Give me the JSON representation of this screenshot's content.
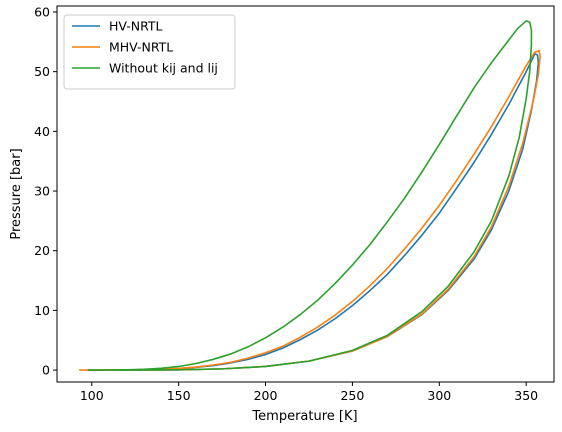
{
  "chart_data": {
    "type": "line",
    "title": "",
    "xlabel": "Temperature [K]",
    "ylabel": "Pressure [bar]",
    "xlim": [
      80,
      366
    ],
    "ylim": [
      -2,
      61
    ],
    "xticks": [
      100,
      150,
      200,
      250,
      300,
      350
    ],
    "yticks": [
      0,
      10,
      20,
      30,
      40,
      50,
      60
    ],
    "grid": false,
    "legend_position": "top-left",
    "series": [
      {
        "name": "HV-NRTL",
        "color": "#1f77b4",
        "points": [
          [
            98,
            0.0
          ],
          [
            120,
            0.0
          ],
          [
            150,
            0.05
          ],
          [
            175,
            0.2
          ],
          [
            200,
            0.6
          ],
          [
            225,
            1.5
          ],
          [
            250,
            3.2
          ],
          [
            270,
            5.6
          ],
          [
            290,
            9.3
          ],
          [
            305,
            13.3
          ],
          [
            320,
            18.6
          ],
          [
            330,
            23.5
          ],
          [
            340,
            30.0
          ],
          [
            348,
            37.0
          ],
          [
            353,
            43.5
          ],
          [
            356,
            48.5
          ],
          [
            357,
            51.5
          ],
          [
            356.5,
            52.8
          ],
          [
            355,
            53.0
          ],
          [
            350,
            50.0
          ],
          [
            340,
            44.5
          ],
          [
            330,
            39.5
          ],
          [
            320,
            34.8
          ],
          [
            310,
            30.5
          ],
          [
            300,
            26.3
          ],
          [
            290,
            22.6
          ],
          [
            280,
            19.2
          ],
          [
            270,
            16.0
          ],
          [
            260,
            13.3
          ],
          [
            250,
            10.8
          ],
          [
            240,
            8.6
          ],
          [
            230,
            6.7
          ],
          [
            220,
            5.1
          ],
          [
            210,
            3.7
          ],
          [
            200,
            2.6
          ],
          [
            190,
            1.8
          ],
          [
            180,
            1.2
          ],
          [
            170,
            0.75
          ],
          [
            160,
            0.45
          ],
          [
            150,
            0.25
          ],
          [
            140,
            0.13
          ],
          [
            130,
            0.06
          ],
          [
            120,
            0.02
          ],
          [
            110,
            0.0
          ],
          [
            100,
            0.0
          ]
        ]
      },
      {
        "name": "MHV-NRTL",
        "color": "#ff7f0e",
        "points": [
          [
            93,
            0.0
          ],
          [
            120,
            0.0
          ],
          [
            150,
            0.05
          ],
          [
            175,
            0.2
          ],
          [
            200,
            0.6
          ],
          [
            225,
            1.5
          ],
          [
            250,
            3.2
          ],
          [
            270,
            5.6
          ],
          [
            290,
            9.4
          ],
          [
            305,
            13.5
          ],
          [
            320,
            19.0
          ],
          [
            330,
            24.0
          ],
          [
            340,
            30.8
          ],
          [
            348,
            38.0
          ],
          [
            354,
            45.0
          ],
          [
            357,
            49.5
          ],
          [
            358,
            52.5
          ],
          [
            357.5,
            53.5
          ],
          [
            355,
            53.3
          ],
          [
            350,
            51.0
          ],
          [
            340,
            45.8
          ],
          [
            330,
            40.8
          ],
          [
            320,
            36.2
          ],
          [
            310,
            31.8
          ],
          [
            300,
            27.6
          ],
          [
            290,
            23.8
          ],
          [
            280,
            20.3
          ],
          [
            270,
            17.0
          ],
          [
            260,
            14.1
          ],
          [
            250,
            11.5
          ],
          [
            240,
            9.2
          ],
          [
            230,
            7.2
          ],
          [
            220,
            5.5
          ],
          [
            210,
            4.0
          ],
          [
            200,
            2.9
          ],
          [
            190,
            2.0
          ],
          [
            180,
            1.3
          ],
          [
            170,
            0.85
          ],
          [
            160,
            0.5
          ],
          [
            150,
            0.28
          ],
          [
            140,
            0.15
          ],
          [
            130,
            0.07
          ],
          [
            120,
            0.02
          ],
          [
            110,
            0.0
          ],
          [
            100,
            0.0
          ],
          [
            93,
            0.0
          ]
        ]
      },
      {
        "name": "Without kij and lij",
        "color": "#2ca02c",
        "points": [
          [
            98,
            0.0
          ],
          [
            120,
            0.0
          ],
          [
            150,
            0.05
          ],
          [
            175,
            0.2
          ],
          [
            200,
            0.6
          ],
          [
            225,
            1.5
          ],
          [
            250,
            3.3
          ],
          [
            270,
            5.8
          ],
          [
            290,
            9.8
          ],
          [
            305,
            14.0
          ],
          [
            320,
            19.8
          ],
          [
            330,
            25.0
          ],
          [
            340,
            32.5
          ],
          [
            346,
            39.0
          ],
          [
            350,
            45.5
          ],
          [
            352,
            50.0
          ],
          [
            353,
            54.5
          ],
          [
            353,
            57.0
          ],
          [
            352,
            58.3
          ],
          [
            350,
            58.5
          ],
          [
            345,
            57.2
          ],
          [
            340,
            55.3
          ],
          [
            330,
            51.5
          ],
          [
            320,
            47.3
          ],
          [
            310,
            42.6
          ],
          [
            300,
            37.8
          ],
          [
            290,
            33.2
          ],
          [
            280,
            28.8
          ],
          [
            270,
            24.8
          ],
          [
            260,
            21.0
          ],
          [
            250,
            17.6
          ],
          [
            240,
            14.5
          ],
          [
            230,
            11.7
          ],
          [
            220,
            9.3
          ],
          [
            210,
            7.2
          ],
          [
            200,
            5.4
          ],
          [
            190,
            3.9
          ],
          [
            180,
            2.7
          ],
          [
            170,
            1.8
          ],
          [
            160,
            1.1
          ],
          [
            150,
            0.6
          ],
          [
            140,
            0.3
          ],
          [
            130,
            0.12
          ],
          [
            120,
            0.04
          ],
          [
            110,
            0.0
          ],
          [
            100,
            0.0
          ]
        ]
      }
    ]
  }
}
